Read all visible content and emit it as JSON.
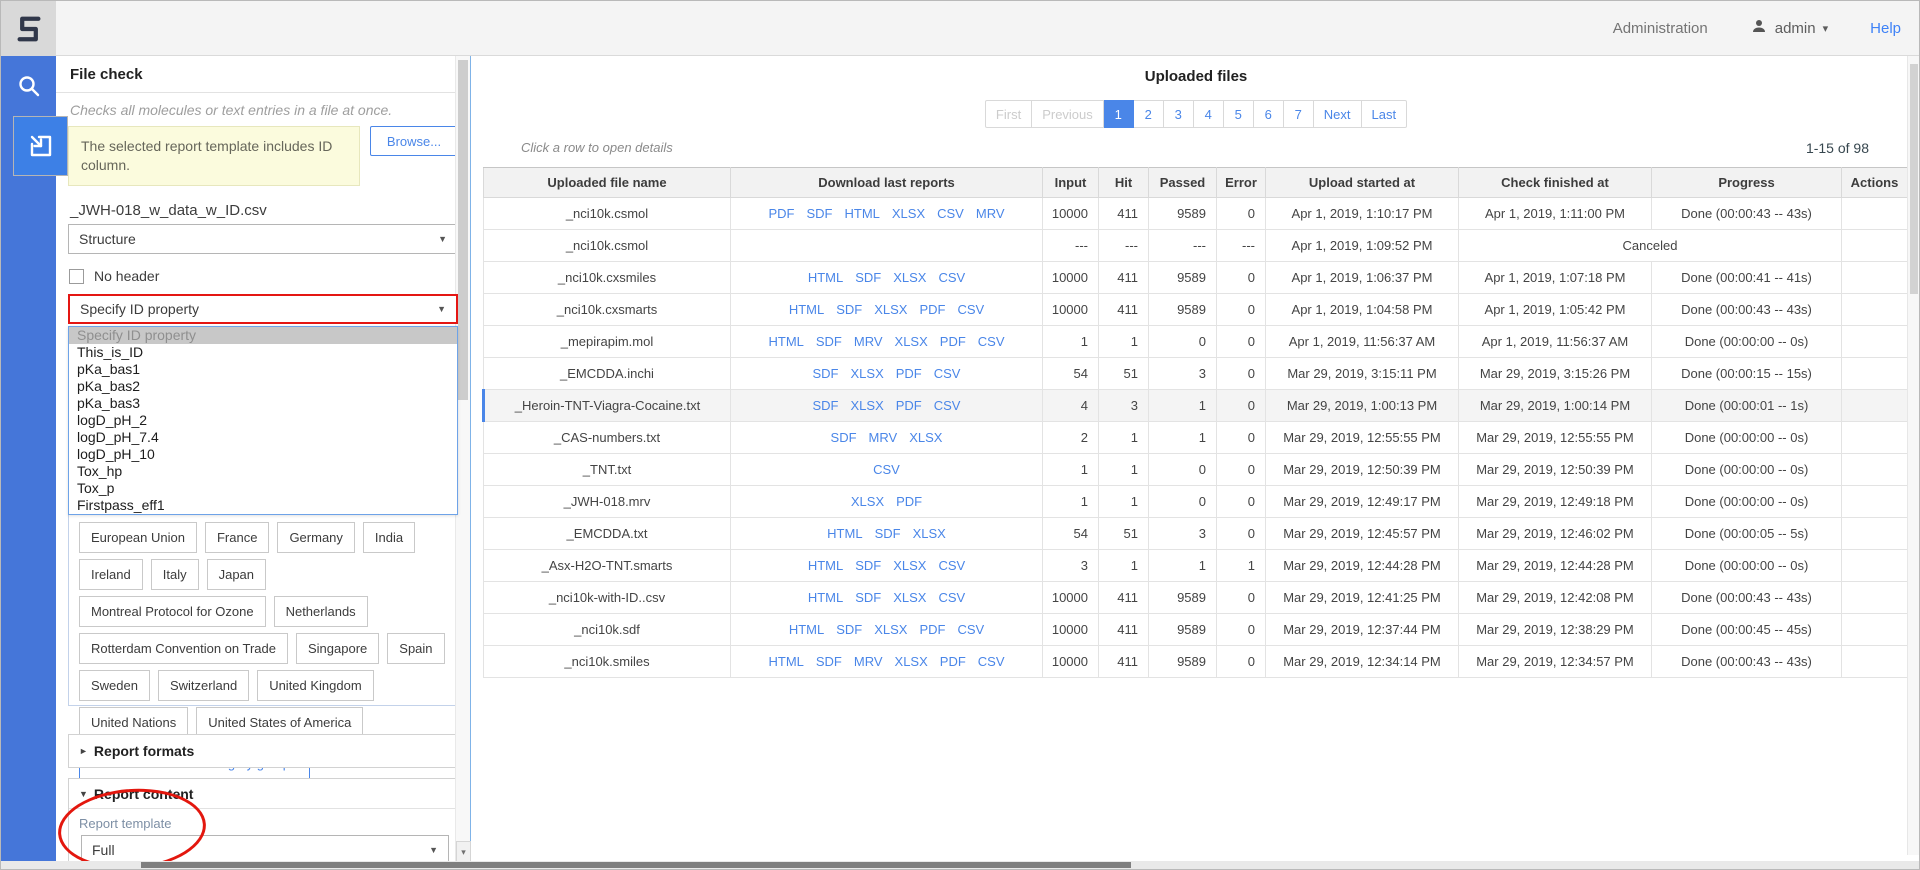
{
  "topbar": {
    "administration": "Administration",
    "user": "admin",
    "help": "Help"
  },
  "icons": {
    "caret_down": "▾",
    "triangle_right": "►",
    "triangle_down": "▼",
    "select_arrow": "▼",
    "scroll_down": "▼"
  },
  "colors": {
    "accent_blue": "#4a86e8",
    "rail_blue": "#4576d9",
    "annotation_red": "#e3170e",
    "link_blue": "#4a86e8",
    "notice_yellow": "#fbfbdd"
  },
  "sidebar": {
    "icons": [
      "app-logo",
      "search",
      "file-import"
    ]
  },
  "panel": {
    "title": "File check",
    "description": "Checks all molecules or text entries in a file at once.",
    "notice": "The selected report template includes ID column.",
    "browse_label": "Browse...",
    "filename": "_JWH-018_w_data_w_ID.csv",
    "structure_value": "Structure",
    "no_header_label": "No header",
    "id_select_value": "Specify ID property",
    "id_options": [
      "Specify ID property",
      "This_is_ID",
      "pKa_bas1",
      "pKa_bas2",
      "pKa_bas3",
      "logD_pH_2",
      "logD_pH_7.4",
      "logD_pH_10",
      "Tox_hp",
      "Tox_p",
      "Firstpass_eff1"
    ],
    "categories": [
      "European Union",
      "France",
      "Germany",
      "India",
      "Ireland",
      "Italy",
      "Japan",
      "Montreal Protocol for Ozone",
      "Netherlands",
      "Rotterdam Convention on Trade",
      "Singapore",
      "Spain",
      "Sweden",
      "Switzerland",
      "United Kingdom",
      "United Nations",
      "United States of America"
    ],
    "switch_button": "Switch to available category groups",
    "report_formats_label": "Report formats",
    "report_content_label": "Report content",
    "report_template_label": "Report template",
    "report_template_value": "Full"
  },
  "main": {
    "title": "Uploaded files",
    "hint": "Click a row to open details",
    "range": "1-15 of 98",
    "pagination": {
      "first": "First",
      "previous": "Previous",
      "pages": [
        "1",
        "2",
        "3",
        "4",
        "5",
        "6",
        "7"
      ],
      "active_page": "1",
      "next": "Next",
      "last": "Last"
    },
    "table": {
      "columns": [
        "Uploaded file name",
        "Download last reports",
        "Input",
        "Hit",
        "Passed",
        "Error",
        "Upload started at",
        "Check finished at",
        "Progress",
        "Actions"
      ],
      "rows": [
        {
          "name": "_nci10k.csmol",
          "links": [
            "PDF",
            "SDF",
            "HTML",
            "XLSX",
            "CSV",
            "MRV"
          ],
          "input": "10000",
          "hit": "411",
          "passed": "9589",
          "error": "0",
          "started": "Apr 1, 2019, 1:10:17 PM",
          "finished": "Apr 1, 2019, 1:11:00 PM",
          "progress": "Done (00:00:43 -- 43s)",
          "canceled": false,
          "highlighted": false
        },
        {
          "name": "_nci10k.csmol",
          "links": [],
          "input": "---",
          "hit": "---",
          "passed": "---",
          "error": "---",
          "started": "Apr 1, 2019, 1:09:52 PM",
          "finished": "",
          "progress": "Canceled",
          "canceled": true,
          "highlighted": false
        },
        {
          "name": "_nci10k.cxsmiles",
          "links": [
            "HTML",
            "SDF",
            "XLSX",
            "CSV"
          ],
          "input": "10000",
          "hit": "411",
          "passed": "9589",
          "error": "0",
          "started": "Apr 1, 2019, 1:06:37 PM",
          "finished": "Apr 1, 2019, 1:07:18 PM",
          "progress": "Done (00:00:41 -- 41s)",
          "canceled": false,
          "highlighted": false
        },
        {
          "name": "_nci10k.cxsmarts",
          "links": [
            "HTML",
            "SDF",
            "XLSX",
            "PDF",
            "CSV"
          ],
          "input": "10000",
          "hit": "411",
          "passed": "9589",
          "error": "0",
          "started": "Apr 1, 2019, 1:04:58 PM",
          "finished": "Apr 1, 2019, 1:05:42 PM",
          "progress": "Done (00:00:43 -- 43s)",
          "canceled": false,
          "highlighted": false
        },
        {
          "name": "_mepirapim.mol",
          "links": [
            "HTML",
            "SDF",
            "MRV",
            "XLSX",
            "PDF",
            "CSV"
          ],
          "input": "1",
          "hit": "1",
          "passed": "0",
          "error": "0",
          "started": "Apr 1, 2019, 11:56:37 AM",
          "finished": "Apr 1, 2019, 11:56:37 AM",
          "progress": "Done (00:00:00 -- 0s)",
          "canceled": false,
          "highlighted": false
        },
        {
          "name": "_EMCDDA.inchi",
          "links": [
            "SDF",
            "XLSX",
            "PDF",
            "CSV"
          ],
          "input": "54",
          "hit": "51",
          "passed": "3",
          "error": "0",
          "started": "Mar 29, 2019, 3:15:11 PM",
          "finished": "Mar 29, 2019, 3:15:26 PM",
          "progress": "Done (00:00:15 -- 15s)",
          "canceled": false,
          "highlighted": false
        },
        {
          "name": "_Heroin-TNT-Viagra-Cocaine.txt",
          "links": [
            "SDF",
            "XLSX",
            "PDF",
            "CSV"
          ],
          "input": "4",
          "hit": "3",
          "passed": "1",
          "error": "0",
          "started": "Mar 29, 2019, 1:00:13 PM",
          "finished": "Mar 29, 2019, 1:00:14 PM",
          "progress": "Done (00:00:01 -- 1s)",
          "canceled": false,
          "highlighted": true
        },
        {
          "name": "_CAS-numbers.txt",
          "links": [
            "SDF",
            "MRV",
            "XLSX"
          ],
          "input": "2",
          "hit": "1",
          "passed": "1",
          "error": "0",
          "started": "Mar 29, 2019, 12:55:55 PM",
          "finished": "Mar 29, 2019, 12:55:55 PM",
          "progress": "Done (00:00:00 -- 0s)",
          "canceled": false,
          "highlighted": false
        },
        {
          "name": "_TNT.txt",
          "links": [
            "CSV"
          ],
          "input": "1",
          "hit": "1",
          "passed": "0",
          "error": "0",
          "started": "Mar 29, 2019, 12:50:39 PM",
          "finished": "Mar 29, 2019, 12:50:39 PM",
          "progress": "Done (00:00:00 -- 0s)",
          "canceled": false,
          "highlighted": false
        },
        {
          "name": "_JWH-018.mrv",
          "links": [
            "XLSX",
            "PDF"
          ],
          "input": "1",
          "hit": "1",
          "passed": "0",
          "error": "0",
          "started": "Mar 29, 2019, 12:49:17 PM",
          "finished": "Mar 29, 2019, 12:49:18 PM",
          "progress": "Done (00:00:00 -- 0s)",
          "canceled": false,
          "highlighted": false
        },
        {
          "name": "_EMCDDA.txt",
          "links": [
            "HTML",
            "SDF",
            "XLSX"
          ],
          "input": "54",
          "hit": "51",
          "passed": "3",
          "error": "0",
          "started": "Mar 29, 2019, 12:45:57 PM",
          "finished": "Mar 29, 2019, 12:46:02 PM",
          "progress": "Done (00:00:05 -- 5s)",
          "canceled": false,
          "highlighted": false
        },
        {
          "name": "_Asx-H2O-TNT.smarts",
          "links": [
            "HTML",
            "SDF",
            "XLSX",
            "CSV"
          ],
          "input": "3",
          "hit": "1",
          "passed": "1",
          "error": "1",
          "started": "Mar 29, 2019, 12:44:28 PM",
          "finished": "Mar 29, 2019, 12:44:28 PM",
          "progress": "Done (00:00:00 -- 0s)",
          "canceled": false,
          "highlighted": false
        },
        {
          "name": "_nci10k-with-ID..csv",
          "links": [
            "HTML",
            "SDF",
            "XLSX",
            "CSV"
          ],
          "input": "10000",
          "hit": "411",
          "passed": "9589",
          "error": "0",
          "started": "Mar 29, 2019, 12:41:25 PM",
          "finished": "Mar 29, 2019, 12:42:08 PM",
          "progress": "Done (00:00:43 -- 43s)",
          "canceled": false,
          "highlighted": false
        },
        {
          "name": "_nci10k.sdf",
          "links": [
            "HTML",
            "SDF",
            "XLSX",
            "PDF",
            "CSV"
          ],
          "input": "10000",
          "hit": "411",
          "passed": "9589",
          "error": "0",
          "started": "Mar 29, 2019, 12:37:44 PM",
          "finished": "Mar 29, 2019, 12:38:29 PM",
          "progress": "Done (00:00:45 -- 45s)",
          "canceled": false,
          "highlighted": false
        },
        {
          "name": "_nci10k.smiles",
          "links": [
            "HTML",
            "SDF",
            "MRV",
            "XLSX",
            "PDF",
            "CSV"
          ],
          "input": "10000",
          "hit": "411",
          "passed": "9589",
          "error": "0",
          "started": "Mar 29, 2019, 12:34:14 PM",
          "finished": "Mar 29, 2019, 12:34:57 PM",
          "progress": "Done (00:00:43 -- 43s)",
          "canceled": false,
          "highlighted": false
        }
      ]
    }
  }
}
